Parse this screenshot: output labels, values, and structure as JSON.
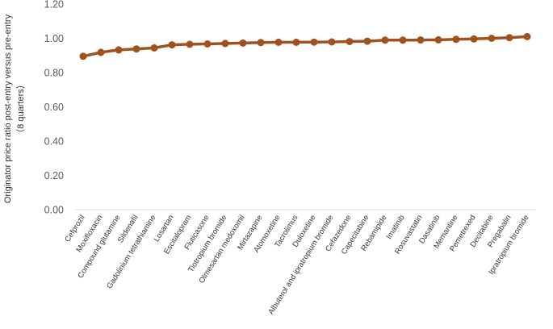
{
  "chart_data": {
    "type": "line",
    "title": "",
    "ylabel_lines": [
      "Originator price ratio post-entry versus pre-entry",
      "（8 quarters）"
    ],
    "xlabel": "",
    "ylim": [
      0,
      1.2
    ],
    "yticks": [
      "0.00",
      "0.20",
      "0.40",
      "0.60",
      "0.80",
      "1.00",
      "1.20"
    ],
    "grid": false,
    "legend": "none",
    "categories": [
      "Cefprozil",
      "Moxifloxacin",
      "Compound glutamine",
      "Sildenafil",
      "Gadolinium tetrathiamine",
      "Losartan",
      "Escitalopram",
      "Fluticasone",
      "Tiotropium bromide",
      "Olmesartan medoxomil",
      "Mirtazapine",
      "Atomoxetine",
      "Tacrolimus",
      "Duloxetine",
      "Albuterol and ipratropium bromide",
      "Cefazedone",
      "Capecitabine",
      "Rebamipide",
      "Imatinib",
      "Rosuvastatin",
      "Dasatinib",
      "Memantine",
      "Pemetrexed",
      "Decitabine",
      "Pregabalin",
      "Ipratropium bromide"
    ],
    "values": [
      0.895,
      0.918,
      0.932,
      0.938,
      0.944,
      0.962,
      0.965,
      0.967,
      0.97,
      0.972,
      0.975,
      0.977,
      0.977,
      0.978,
      0.979,
      0.981,
      0.983,
      0.989,
      0.989,
      0.99,
      0.991,
      0.994,
      0.996,
      1.0,
      1.004,
      1.01
    ],
    "color": "#a0521e"
  }
}
